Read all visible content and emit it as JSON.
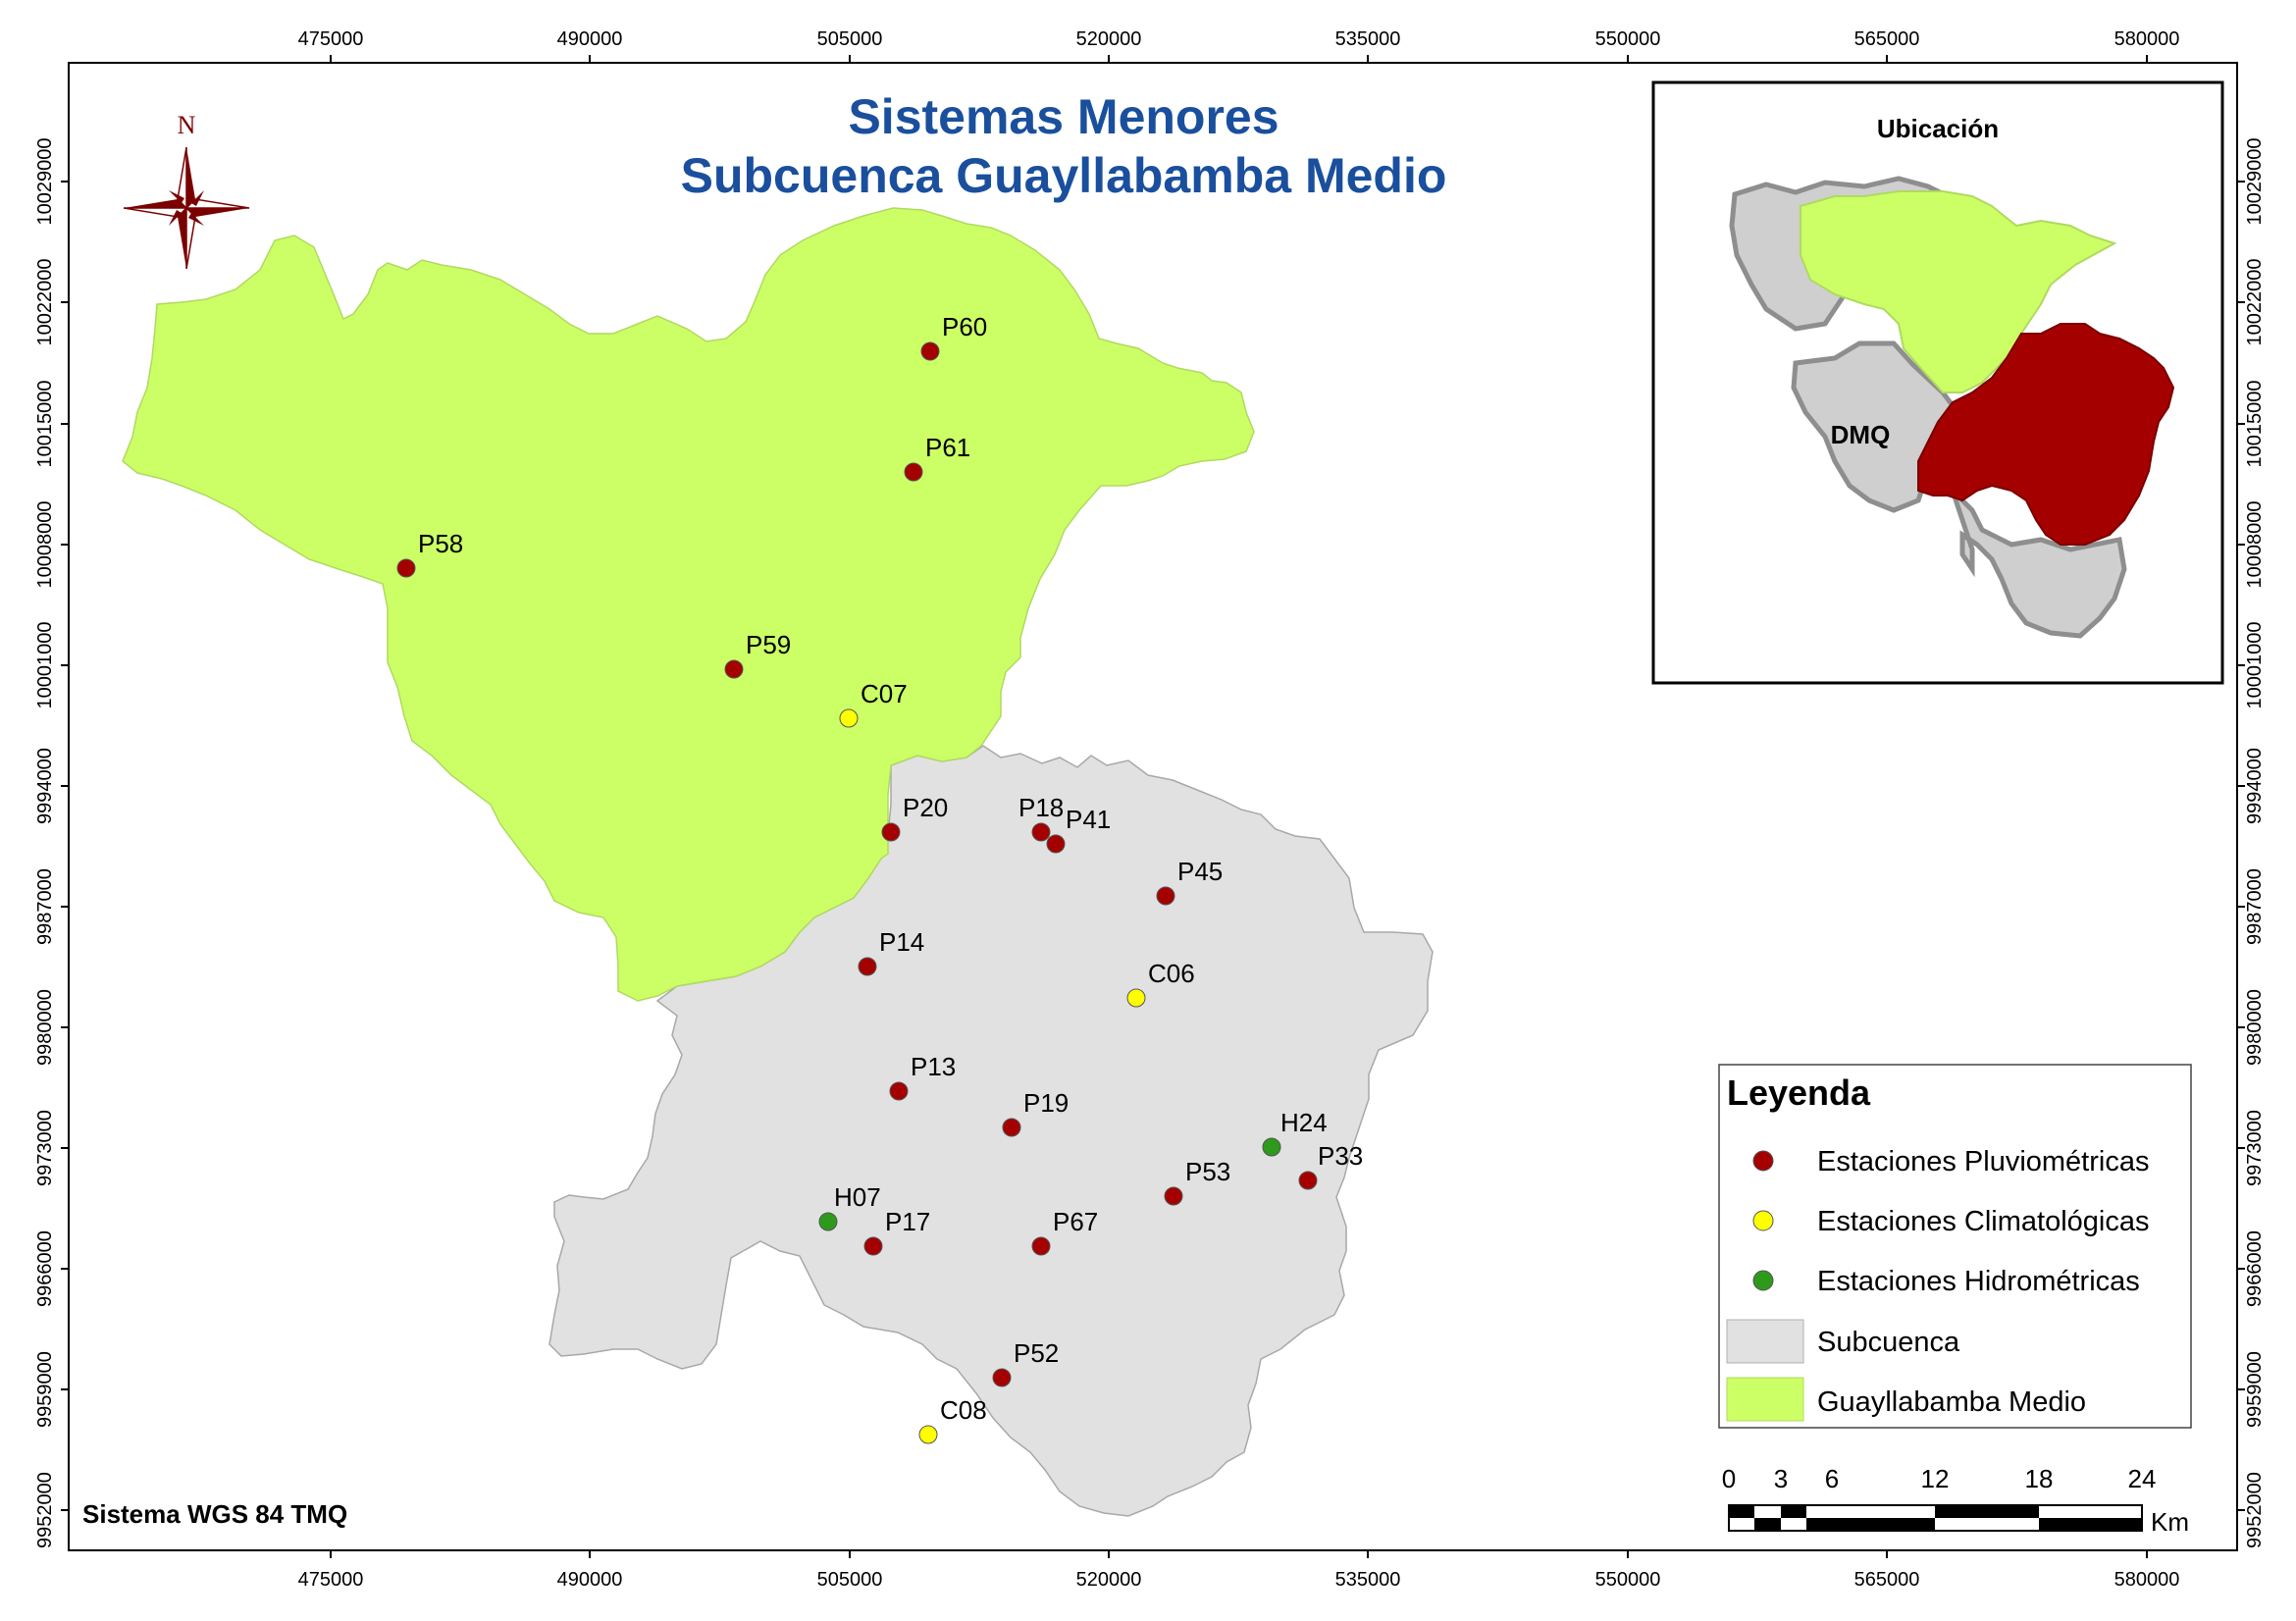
{
  "map": {
    "title_line1": "Sistemas Menores",
    "title_line2": "Subcuenca Guayllabamba Medio",
    "system_label": "Sistema WGS 84 TMQ",
    "north_label": "N",
    "x_ticks": [
      "475000",
      "490000",
      "505000",
      "520000",
      "535000",
      "550000",
      "565000",
      "580000"
    ],
    "y_ticks": [
      "10029000",
      "10022000",
      "10015000",
      "10008000",
      "10001000",
      "9994000",
      "9987000",
      "9980000",
      "9973000",
      "9966000",
      "9959000",
      "9952000"
    ]
  },
  "stations": [
    {
      "id": "P60",
      "type": "pluvio"
    },
    {
      "id": "P61",
      "type": "pluvio"
    },
    {
      "id": "P58",
      "type": "pluvio"
    },
    {
      "id": "P59",
      "type": "pluvio"
    },
    {
      "id": "C07",
      "type": "clima"
    },
    {
      "id": "P20",
      "type": "pluvio"
    },
    {
      "id": "P18",
      "type": "pluvio"
    },
    {
      "id": "P41",
      "type": "pluvio"
    },
    {
      "id": "P45",
      "type": "pluvio"
    },
    {
      "id": "P14",
      "type": "pluvio"
    },
    {
      "id": "C06",
      "type": "clima"
    },
    {
      "id": "P13",
      "type": "pluvio"
    },
    {
      "id": "P19",
      "type": "pluvio"
    },
    {
      "id": "H24",
      "type": "hidro"
    },
    {
      "id": "P33",
      "type": "pluvio"
    },
    {
      "id": "P53",
      "type": "pluvio"
    },
    {
      "id": "H07",
      "type": "hidro"
    },
    {
      "id": "P17",
      "type": "pluvio"
    },
    {
      "id": "P67",
      "type": "pluvio"
    },
    {
      "id": "P52",
      "type": "pluvio"
    },
    {
      "id": "C08",
      "type": "clima"
    }
  ],
  "inset": {
    "title": "Ubicación",
    "dmq_label": "DMQ"
  },
  "legend": {
    "title": "Leyenda",
    "items": [
      {
        "label": "Estaciones Pluviométricas"
      },
      {
        "label": "Estaciones Climatológicas"
      },
      {
        "label": "Estaciones Hidrométricas"
      },
      {
        "label": "Subcuenca"
      },
      {
        "label": "Guayllabamba Medio"
      }
    ]
  },
  "scale_bar": {
    "ticks": [
      "0",
      "3",
      "6",
      "12",
      "18",
      "24"
    ],
    "unit": "Km"
  },
  "colors": {
    "pluvio": "#a50000",
    "clima": "#ffff00",
    "hidro": "#2e9a1c",
    "subcuenca": "#e1e1e1",
    "guayllabamba": "#ccff66",
    "inset_red": "#a50000",
    "title": "#1a4f9e"
  }
}
